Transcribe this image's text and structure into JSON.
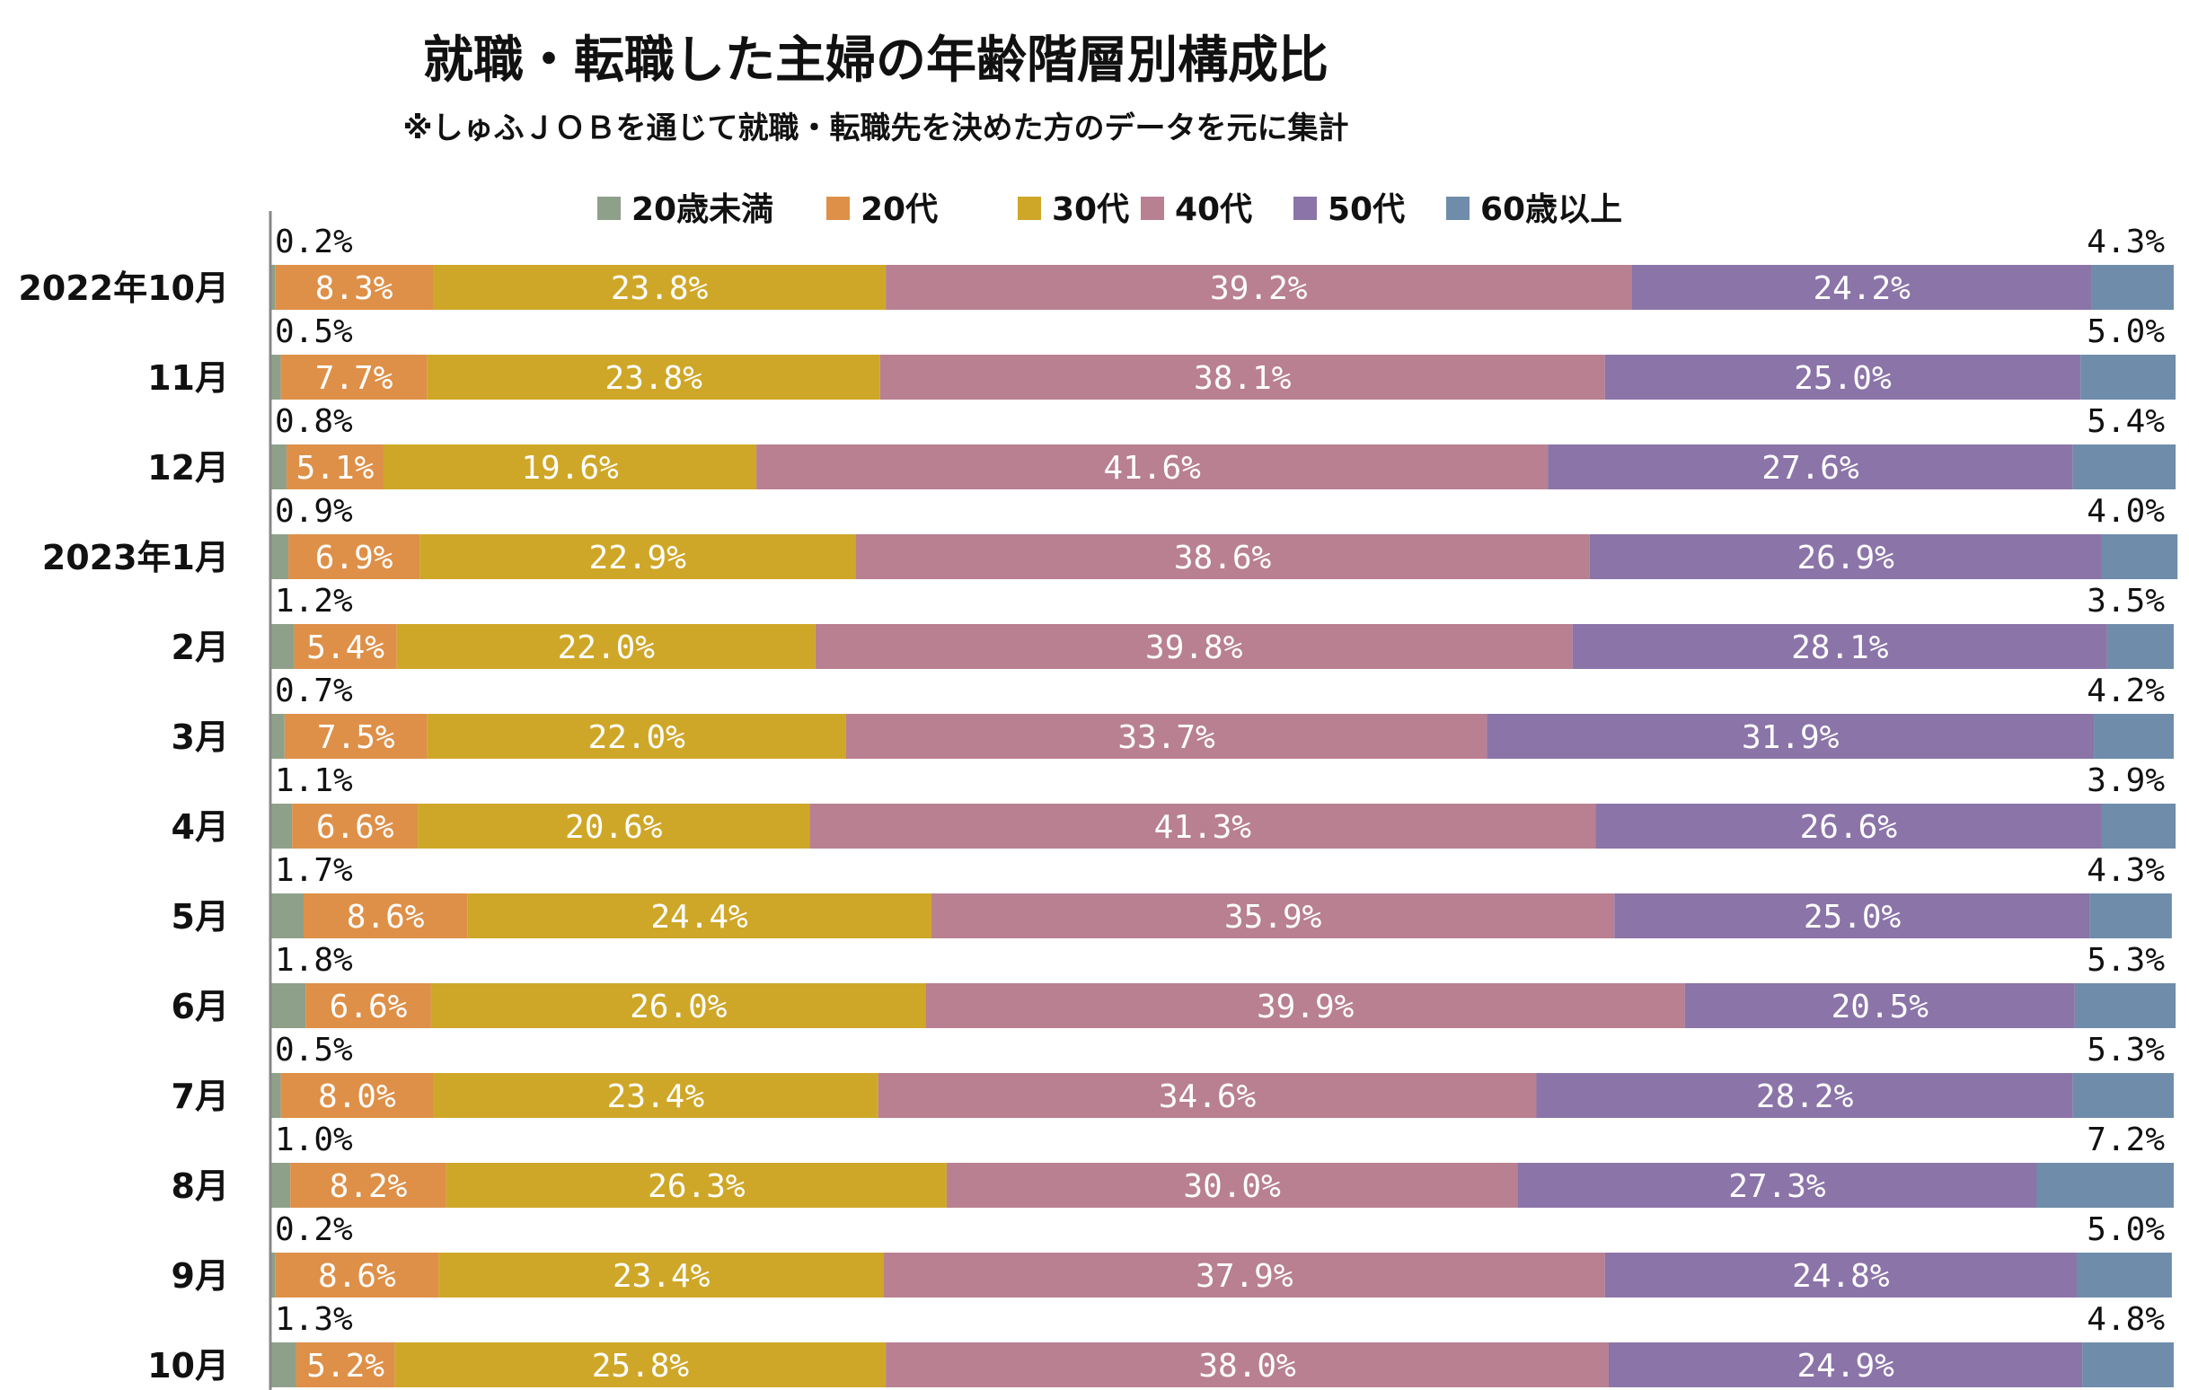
{
  "chart_data": {
    "type": "bar",
    "orientation": "horizontal",
    "stacked": true,
    "title": "就職・転職した主婦の年齢階層別構成比",
    "subtitle": "※しゅふＪＯＢを通じて就職・転職先を決めた方のデータを元に集計",
    "legend_position": "top",
    "xlim": [
      0,
      100
    ],
    "categories": [
      "2022年10月",
      "11月",
      "12月",
      "2023年1月",
      "2月",
      "3月",
      "4月",
      "5月",
      "6月",
      "7月",
      "8月",
      "9月",
      "10月"
    ],
    "series": [
      {
        "name": "20歳未満",
        "color": "#8fa08a",
        "values": [
          0.2,
          0.5,
          0.8,
          0.9,
          1.2,
          0.7,
          1.1,
          1.7,
          1.8,
          0.5,
          1.0,
          0.2,
          1.3
        ]
      },
      {
        "name": "20代",
        "color": "#de9048",
        "values": [
          8.3,
          7.7,
          5.1,
          6.9,
          5.4,
          7.5,
          6.6,
          8.6,
          6.6,
          8.0,
          8.2,
          8.6,
          5.2
        ]
      },
      {
        "name": "30代",
        "color": "#cfa728",
        "values": [
          23.8,
          23.8,
          19.6,
          22.9,
          22.0,
          22.0,
          20.6,
          24.4,
          26.0,
          23.4,
          26.3,
          23.4,
          25.8
        ]
      },
      {
        "name": "40代",
        "color": "#b88090",
        "values": [
          39.2,
          38.1,
          41.6,
          38.6,
          39.8,
          33.7,
          41.3,
          35.9,
          39.9,
          34.6,
          30.0,
          37.9,
          38.0
        ]
      },
      {
        "name": "50代",
        "color": "#8b74a8",
        "values": [
          24.2,
          25.0,
          27.6,
          26.9,
          28.1,
          31.9,
          26.6,
          25.0,
          20.5,
          28.2,
          27.3,
          24.8,
          24.9
        ]
      },
      {
        "name": "60歳以上",
        "color": "#6f8dab",
        "values": [
          4.3,
          5.0,
          5.4,
          4.0,
          3.5,
          4.2,
          3.9,
          4.3,
          5.3,
          5.3,
          7.2,
          5.0,
          4.8
        ]
      }
    ],
    "value_suffix": "%"
  }
}
